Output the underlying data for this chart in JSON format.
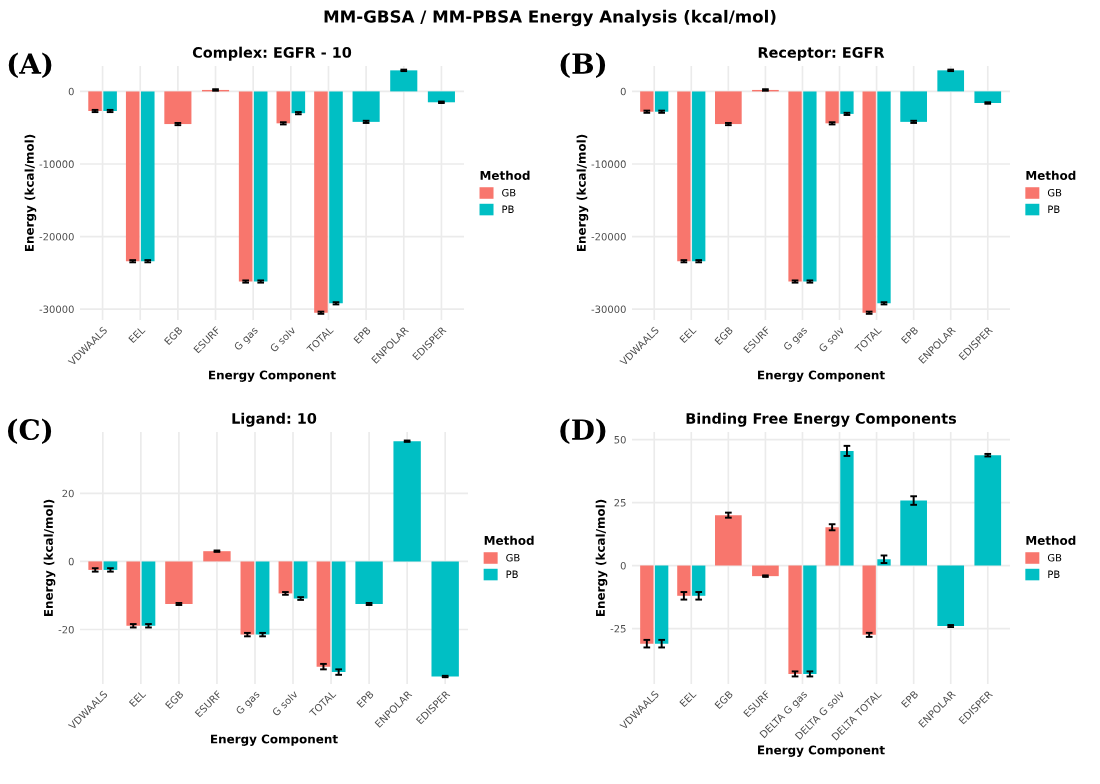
{
  "chart_data": [
    {
      "type": "bar",
      "title": "Complex: EGFR - 10",
      "xlabel": "Energy Component",
      "ylabel": "Energy (kcal/mol)",
      "legend_title": "Method",
      "legend": "right",
      "grid": true,
      "annotations": [
        "(A)",
        "MM-GBSA / MM-PBSA Energy Analysis (kcal/mol)"
      ],
      "categories": [
        "VDWAALS",
        "EEL",
        "EGB",
        "ESURF",
        "G gas",
        "G solv",
        "TOTAL",
        "EPB",
        "ENPOLAR",
        "EDISPER"
      ],
      "ylim": [
        -31500,
        3500
      ],
      "yticks": [
        -30000,
        -20000,
        -10000,
        0
      ],
      "series": [
        {
          "name": "GB",
          "color": "#f8766d",
          "values": [
            -2700,
            -23400,
            -4500,
            200,
            -26200,
            -4400,
            -30500,
            null,
            null,
            null
          ],
          "errors": [
            150,
            150,
            150,
            100,
            150,
            150,
            150,
            null,
            null,
            null
          ]
        },
        {
          "name": "PB",
          "color": "#00bfc4",
          "values": [
            -2700,
            -23400,
            null,
            null,
            -26200,
            -3000,
            -29200,
            -4200,
            2900,
            -1500
          ],
          "errors": [
            150,
            150,
            null,
            null,
            150,
            150,
            150,
            150,
            100,
            100
          ]
        }
      ]
    },
    {
      "type": "bar",
      "title": "Receptor: EGFR",
      "xlabel": "Energy Component",
      "ylabel": "Energy (kcal/mol)",
      "legend_title": "Method",
      "legend": "right",
      "grid": true,
      "annotations": [
        "(B)"
      ],
      "categories": [
        "VDWAALS",
        "EEL",
        "EGB",
        "ESURF",
        "G gas",
        "G solv",
        "TOTAL",
        "EPB",
        "ENPOLAR",
        "EDISPER"
      ],
      "ylim": [
        -31500,
        3500
      ],
      "yticks": [
        -30000,
        -20000,
        -10000,
        0
      ],
      "series": [
        {
          "name": "GB",
          "color": "#f8766d",
          "values": [
            -2800,
            -23400,
            -4500,
            200,
            -26200,
            -4400,
            -30500,
            null,
            null,
            null
          ],
          "errors": [
            150,
            150,
            150,
            100,
            150,
            150,
            150,
            null,
            null,
            null
          ]
        },
        {
          "name": "PB",
          "color": "#00bfc4",
          "values": [
            -2800,
            -23400,
            null,
            null,
            -26200,
            -3100,
            -29200,
            -4200,
            2900,
            -1600
          ],
          "errors": [
            150,
            150,
            null,
            null,
            150,
            150,
            150,
            150,
            100,
            100
          ]
        }
      ]
    },
    {
      "type": "bar",
      "title": "Ligand: 10",
      "xlabel": "Energy Component",
      "ylabel": "Energy (kcal/mol)",
      "legend_title": "Method",
      "legend": "right",
      "grid": true,
      "annotations": [
        "(C)"
      ],
      "categories": [
        "VDWAALS",
        "EEL",
        "EGB",
        "ESURF",
        "G gas",
        "G solv",
        "TOTAL",
        "EPB",
        "ENPOLAR",
        "EDISPER"
      ],
      "ylim": [
        -36,
        38
      ],
      "yticks": [
        -20,
        0,
        20
      ],
      "series": [
        {
          "name": "GB",
          "color": "#f8766d",
          "values": [
            -2.5,
            -18.9,
            -12.5,
            3.0,
            -21.5,
            -9.4,
            -30.9,
            null,
            null,
            null
          ],
          "errors": [
            0.5,
            0.5,
            0.3,
            0.2,
            0.5,
            0.4,
            0.8,
            null,
            null,
            null
          ]
        },
        {
          "name": "PB",
          "color": "#00bfc4",
          "values": [
            -2.5,
            -18.9,
            null,
            null,
            -21.5,
            -10.9,
            -32.5,
            -12.5,
            35.3,
            -33.8
          ],
          "errors": [
            0.5,
            0.5,
            null,
            null,
            0.5,
            0.4,
            0.8,
            0.3,
            0.2,
            0.2
          ]
        }
      ]
    },
    {
      "type": "bar",
      "title": "Binding Free Energy Components",
      "xlabel": "Energy Component",
      "ylabel": "Energy (kcal/mol)",
      "legend_title": "Method",
      "legend": "right",
      "grid": true,
      "annotations": [
        "(D)"
      ],
      "categories": [
        "VDWAALS",
        "EEL",
        "EGB",
        "ESURF",
        "DELTA G gas",
        "DELTA G solv",
        "DELTA TOTAL",
        "EPB",
        "ENPOLAR",
        "EDISPER"
      ],
      "ylim": [
        -47,
        53
      ],
      "yticks": [
        -25,
        0,
        25,
        50
      ],
      "series": [
        {
          "name": "GB",
          "color": "#f8766d",
          "values": [
            -31,
            -12,
            20,
            -4.2,
            -43,
            15.2,
            -27.5,
            null,
            null,
            null
          ],
          "errors": [
            1.5,
            1.5,
            1,
            0.3,
            1,
            1.2,
            0.8,
            null,
            null,
            null
          ]
        },
        {
          "name": "PB",
          "color": "#00bfc4",
          "values": [
            -31,
            -12,
            null,
            null,
            -43,
            45.5,
            2.5,
            25.8,
            -24,
            43.8
          ],
          "errors": [
            1.5,
            1.5,
            null,
            null,
            1,
            2,
            1.5,
            1.7,
            0.4,
            0.5
          ]
        }
      ]
    }
  ]
}
